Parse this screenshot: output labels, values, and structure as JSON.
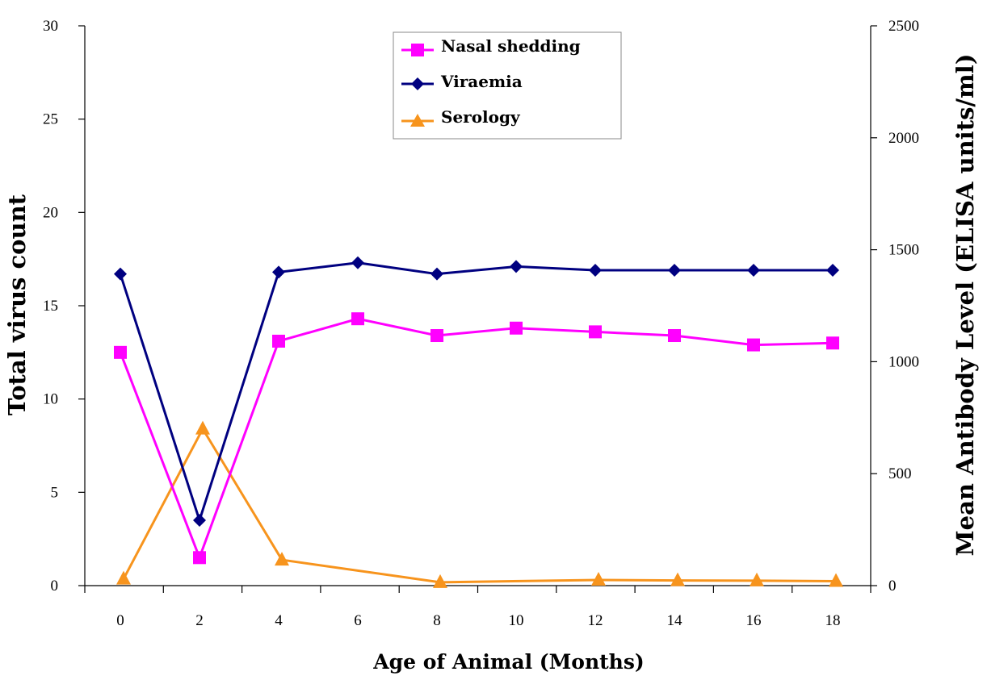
{
  "colors": {
    "nasal": "#ff00ff",
    "viraemia": "#000080",
    "serology": "#f7941d",
    "axis": "#000000"
  },
  "chart_data": {
    "type": "line",
    "xlabel": "Age of Animal (Months)",
    "ylabel_left": "Total virus count",
    "ylabel_right": "Mean Antibody Level (ELISA units/ml)",
    "x_ticks": [
      "0",
      "2",
      "4",
      "6",
      "8",
      "10",
      "12",
      "14",
      "16",
      "18"
    ],
    "ylim_left": [
      0,
      30
    ],
    "yticks_left": [
      "0",
      "5",
      "10",
      "15",
      "20",
      "25",
      "30"
    ],
    "ylim_right": [
      0,
      2500
    ],
    "yticks_right": [
      "0",
      "500",
      "1000",
      "1500",
      "2000",
      "2500"
    ],
    "grid": false,
    "legend_position": "top-center",
    "series": [
      {
        "name": "Nasal shedding",
        "axis": "left",
        "marker": "square",
        "x": [
          0,
          2,
          4,
          6,
          8,
          10,
          12,
          14,
          16,
          18
        ],
        "values": [
          12.5,
          1.5,
          13.1,
          14.3,
          13.4,
          13.8,
          13.6,
          13.4,
          12.9,
          13.0
        ]
      },
      {
        "name": "Viraemia",
        "axis": "left",
        "marker": "diamond",
        "x": [
          0,
          2,
          4,
          6,
          8,
          10,
          12,
          14,
          16,
          18
        ],
        "values": [
          16.7,
          3.5,
          16.8,
          17.3,
          16.7,
          17.1,
          16.9,
          16.9,
          16.9,
          16.9
        ]
      },
      {
        "name": "Serology",
        "axis": "right",
        "marker": "triangle",
        "x": [
          0,
          2,
          4,
          6,
          8,
          10,
          12,
          14,
          16,
          18
        ],
        "values": [
          30,
          700,
          115,
          null,
          15,
          null,
          25,
          23,
          22,
          20
        ]
      }
    ]
  }
}
